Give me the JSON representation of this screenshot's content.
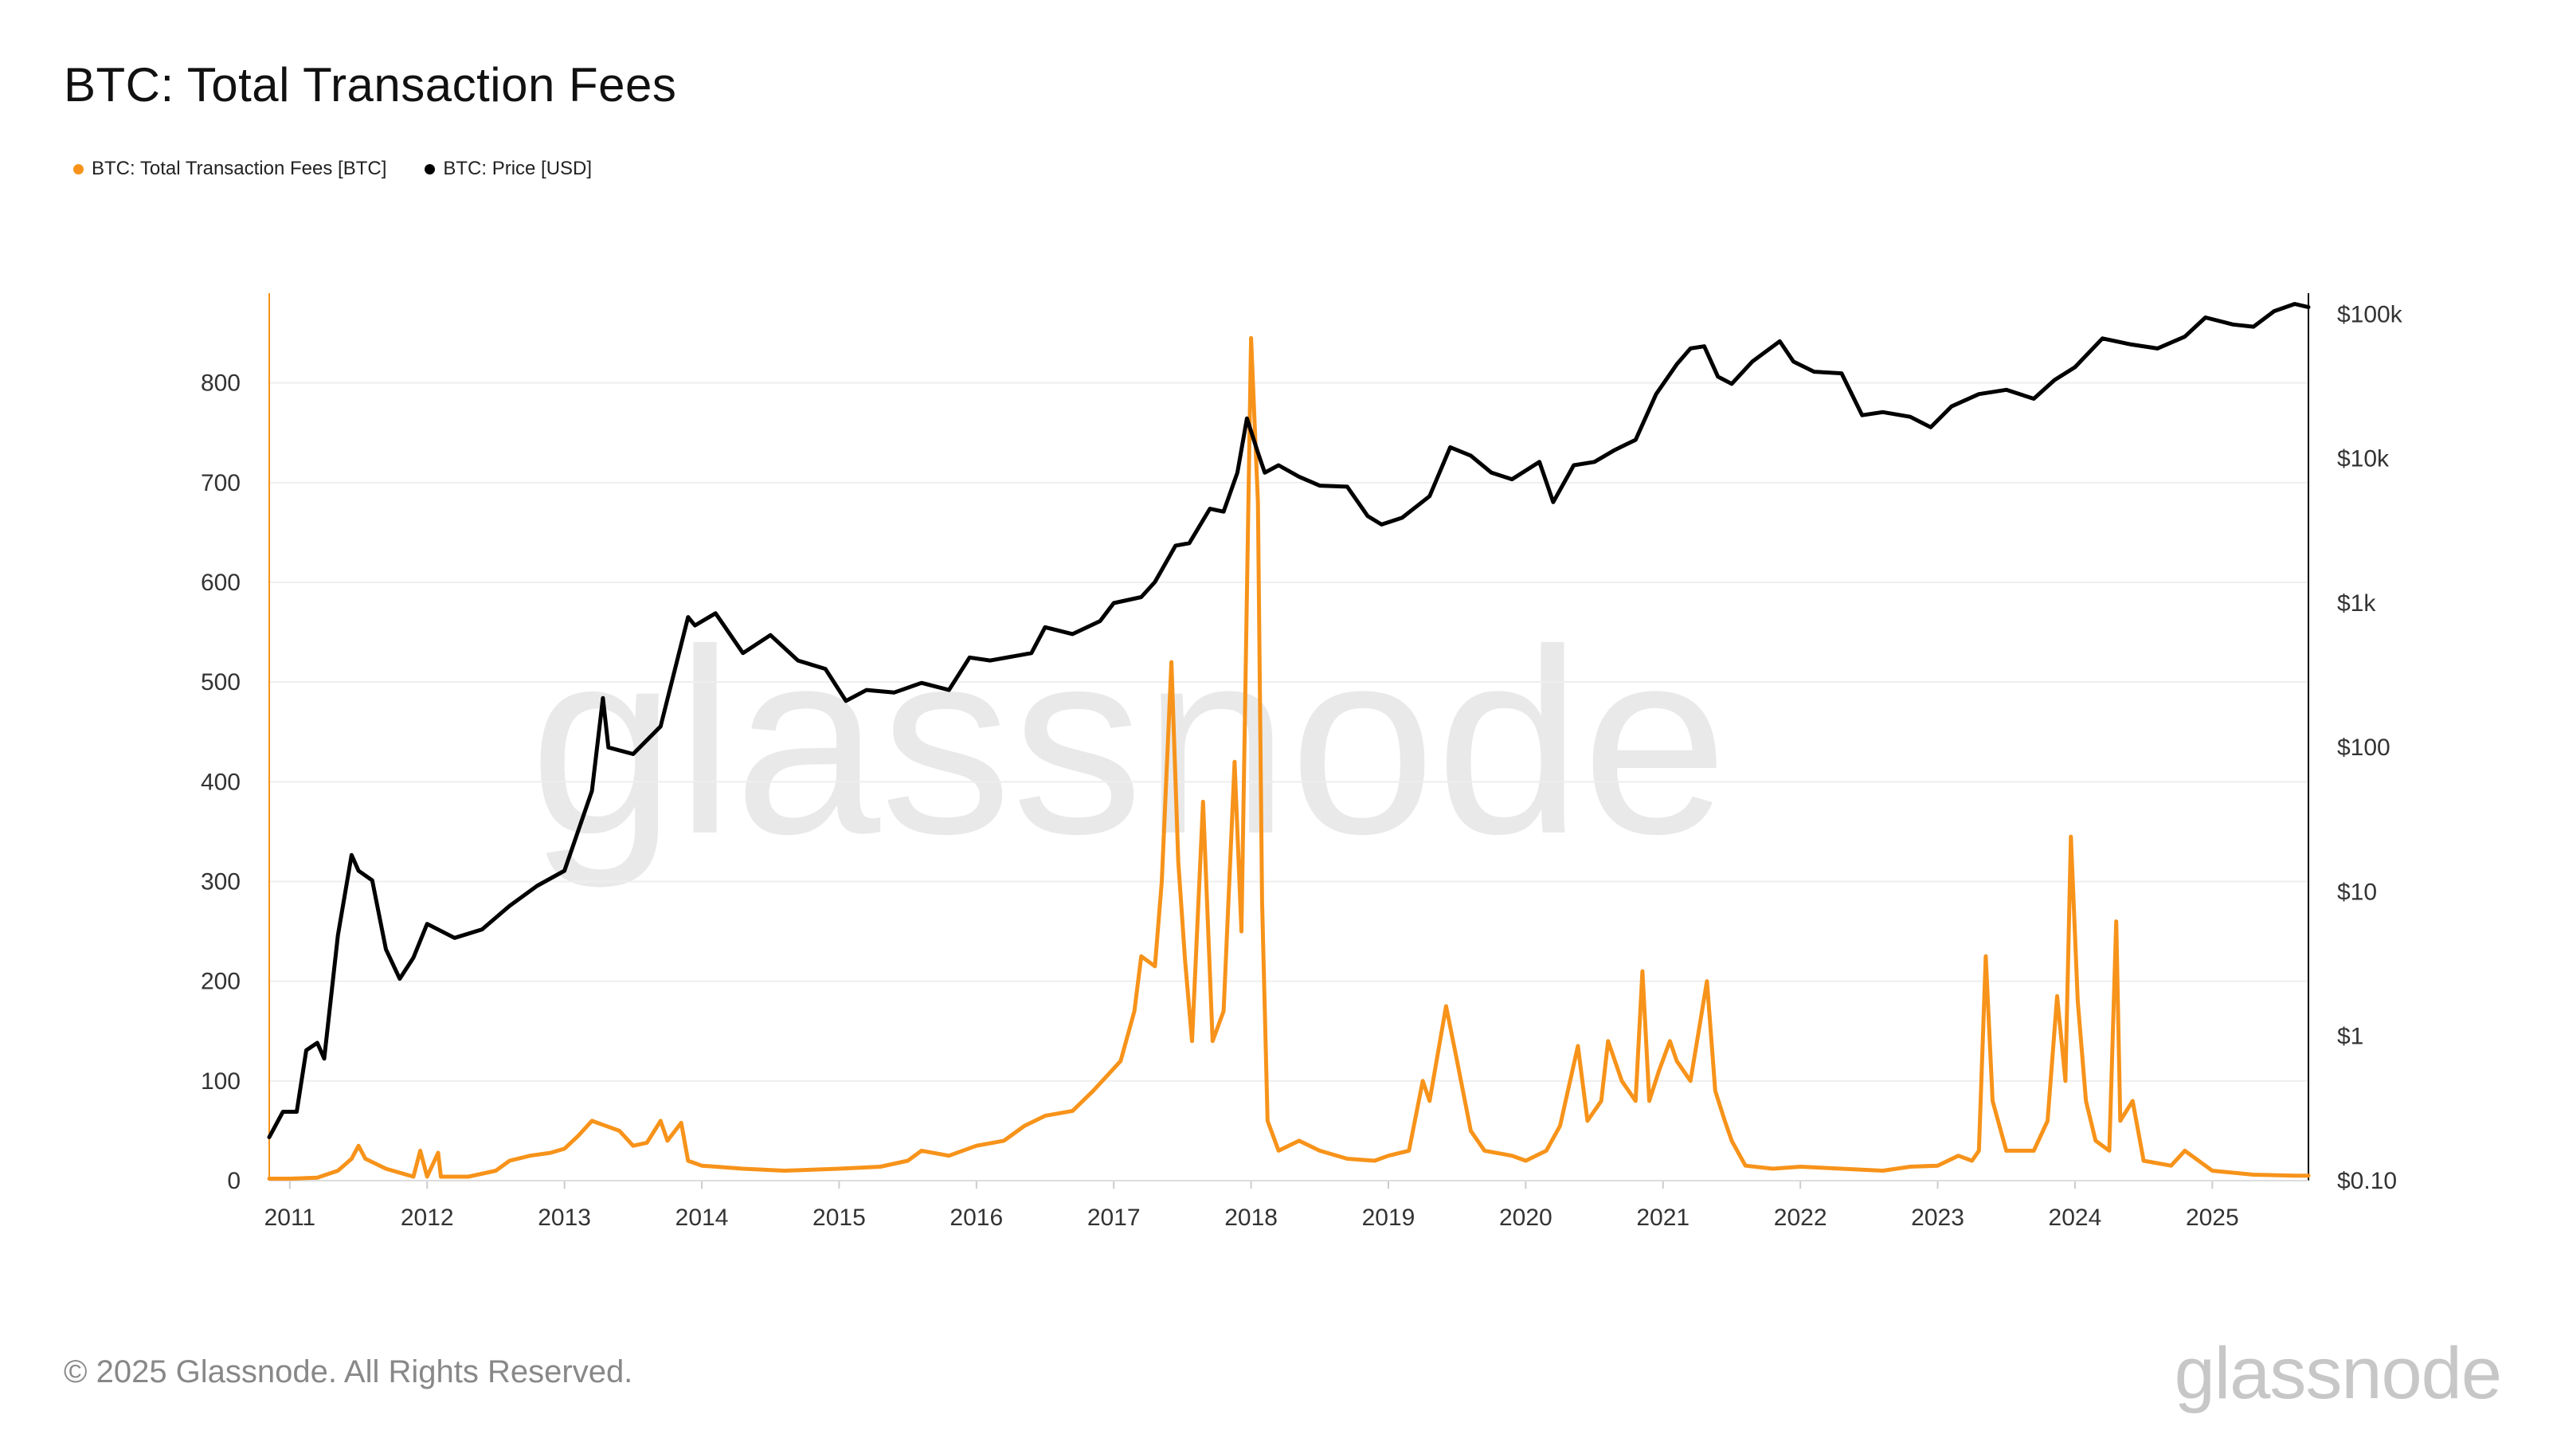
{
  "title": "BTC: Total Transaction Fees",
  "legend": [
    {
      "label": "BTC: Total Transaction Fees [BTC]",
      "color": "#f7931a"
    },
    {
      "label": "BTC: Price [USD]",
      "color": "#000000"
    }
  ],
  "footer": "© 2025 Glassnode. All Rights Reserved.",
  "brand": "glassnode",
  "watermark": "glassnode",
  "chart_data": {
    "type": "line",
    "title": "BTC: Total Transaction Fees",
    "grid": true,
    "legend_position": "top-left",
    "x_ticks": [
      "2011",
      "2012",
      "2013",
      "2014",
      "2015",
      "2016",
      "2017",
      "2018",
      "2019",
      "2020",
      "2021",
      "2022",
      "2023",
      "2024",
      "2025"
    ],
    "x_range": [
      2010.85,
      2025.7
    ],
    "y_left": {
      "label": "",
      "ticks": [
        0,
        100,
        200,
        300,
        400,
        500,
        600,
        700,
        800
      ],
      "range": [
        0,
        890
      ]
    },
    "y_right": {
      "label": "",
      "scale": "log",
      "ticks": [
        0.1,
        1,
        10,
        100,
        1000,
        10000,
        100000
      ],
      "tick_labels": [
        "$0.10",
        "$1",
        "$10",
        "$100",
        "$1k",
        "$10k",
        "$100k"
      ],
      "range": [
        0.1,
        140000
      ]
    },
    "series": [
      {
        "name": "BTC: Total Transaction Fees [BTC]",
        "axis": "left",
        "color": "#f7931a",
        "points": [
          [
            2010.85,
            2
          ],
          [
            2011.0,
            2
          ],
          [
            2011.2,
            3
          ],
          [
            2011.35,
            10
          ],
          [
            2011.45,
            22
          ],
          [
            2011.5,
            35
          ],
          [
            2011.55,
            22
          ],
          [
            2011.7,
            12
          ],
          [
            2011.9,
            4
          ],
          [
            2011.95,
            30
          ],
          [
            2012.0,
            4
          ],
          [
            2012.08,
            28
          ],
          [
            2012.1,
            4
          ],
          [
            2012.3,
            4
          ],
          [
            2012.5,
            10
          ],
          [
            2012.6,
            20
          ],
          [
            2012.75,
            25
          ],
          [
            2012.9,
            28
          ],
          [
            2013.0,
            32
          ],
          [
            2013.1,
            45
          ],
          [
            2013.2,
            60
          ],
          [
            2013.3,
            55
          ],
          [
            2013.4,
            50
          ],
          [
            2013.5,
            35
          ],
          [
            2013.6,
            38
          ],
          [
            2013.7,
            60
          ],
          [
            2013.75,
            40
          ],
          [
            2013.85,
            58
          ],
          [
            2013.9,
            20
          ],
          [
            2014.0,
            15
          ],
          [
            2014.3,
            12
          ],
          [
            2014.6,
            10
          ],
          [
            2015.0,
            12
          ],
          [
            2015.3,
            14
          ],
          [
            2015.5,
            20
          ],
          [
            2015.6,
            30
          ],
          [
            2015.8,
            25
          ],
          [
            2016.0,
            35
          ],
          [
            2016.2,
            40
          ],
          [
            2016.35,
            55
          ],
          [
            2016.5,
            65
          ],
          [
            2016.7,
            70
          ],
          [
            2016.85,
            90
          ],
          [
            2016.95,
            105
          ],
          [
            2017.05,
            120
          ],
          [
            2017.15,
            170
          ],
          [
            2017.2,
            225
          ],
          [
            2017.3,
            215
          ],
          [
            2017.35,
            300
          ],
          [
            2017.42,
            520
          ],
          [
            2017.47,
            320
          ],
          [
            2017.52,
            220
          ],
          [
            2017.57,
            140
          ],
          [
            2017.65,
            380
          ],
          [
            2017.72,
            140
          ],
          [
            2017.8,
            170
          ],
          [
            2017.88,
            420
          ],
          [
            2017.93,
            250
          ],
          [
            2018.0,
            845
          ],
          [
            2018.05,
            680
          ],
          [
            2018.08,
            280
          ],
          [
            2018.12,
            60
          ],
          [
            2018.2,
            30
          ],
          [
            2018.35,
            40
          ],
          [
            2018.5,
            30
          ],
          [
            2018.7,
            22
          ],
          [
            2018.9,
            20
          ],
          [
            2019.0,
            25
          ],
          [
            2019.15,
            30
          ],
          [
            2019.25,
            100
          ],
          [
            2019.3,
            80
          ],
          [
            2019.42,
            175
          ],
          [
            2019.5,
            120
          ],
          [
            2019.55,
            85
          ],
          [
            2019.6,
            50
          ],
          [
            2019.7,
            30
          ],
          [
            2019.9,
            25
          ],
          [
            2020.0,
            20
          ],
          [
            2020.15,
            30
          ],
          [
            2020.25,
            55
          ],
          [
            2020.38,
            135
          ],
          [
            2020.45,
            60
          ],
          [
            2020.55,
            80
          ],
          [
            2020.6,
            140
          ],
          [
            2020.7,
            100
          ],
          [
            2020.8,
            80
          ],
          [
            2020.85,
            210
          ],
          [
            2020.9,
            80
          ],
          [
            2020.97,
            110
          ],
          [
            2021.05,
            140
          ],
          [
            2021.1,
            120
          ],
          [
            2021.2,
            100
          ],
          [
            2021.32,
            200
          ],
          [
            2021.38,
            90
          ],
          [
            2021.45,
            60
          ],
          [
            2021.5,
            40
          ],
          [
            2021.6,
            15
          ],
          [
            2021.8,
            12
          ],
          [
            2022.0,
            14
          ],
          [
            2022.3,
            12
          ],
          [
            2022.6,
            10
          ],
          [
            2022.8,
            14
          ],
          [
            2023.0,
            15
          ],
          [
            2023.15,
            25
          ],
          [
            2023.25,
            20
          ],
          [
            2023.3,
            30
          ],
          [
            2023.35,
            225
          ],
          [
            2023.4,
            80
          ],
          [
            2023.5,
            30
          ],
          [
            2023.7,
            30
          ],
          [
            2023.8,
            60
          ],
          [
            2023.87,
            185
          ],
          [
            2023.93,
            100
          ],
          [
            2023.97,
            345
          ],
          [
            2024.02,
            180
          ],
          [
            2024.08,
            80
          ],
          [
            2024.15,
            40
          ],
          [
            2024.25,
            30
          ],
          [
            2024.3,
            260
          ],
          [
            2024.33,
            60
          ],
          [
            2024.42,
            80
          ],
          [
            2024.5,
            20
          ],
          [
            2024.7,
            15
          ],
          [
            2024.8,
            30
          ],
          [
            2025.0,
            10
          ],
          [
            2025.3,
            6
          ],
          [
            2025.6,
            5
          ],
          [
            2025.7,
            5
          ]
        ]
      },
      {
        "name": "BTC: Price [USD]",
        "axis": "right",
        "color": "#000000",
        "points": [
          [
            2010.85,
            0.2
          ],
          [
            2010.95,
            0.3
          ],
          [
            2011.05,
            0.3
          ],
          [
            2011.12,
            0.8
          ],
          [
            2011.2,
            0.9
          ],
          [
            2011.25,
            0.7
          ],
          [
            2011.35,
            5
          ],
          [
            2011.45,
            18
          ],
          [
            2011.5,
            14
          ],
          [
            2011.6,
            12
          ],
          [
            2011.7,
            4
          ],
          [
            2011.8,
            2.5
          ],
          [
            2011.9,
            3.5
          ],
          [
            2012.0,
            6
          ],
          [
            2012.2,
            4.8
          ],
          [
            2012.4,
            5.5
          ],
          [
            2012.6,
            8
          ],
          [
            2012.8,
            11
          ],
          [
            2013.0,
            14
          ],
          [
            2013.2,
            50
          ],
          [
            2013.28,
            220
          ],
          [
            2013.32,
            100
          ],
          [
            2013.5,
            90
          ],
          [
            2013.7,
            140
          ],
          [
            2013.9,
            800
          ],
          [
            2013.95,
            700
          ],
          [
            2014.1,
            850
          ],
          [
            2014.3,
            450
          ],
          [
            2014.5,
            600
          ],
          [
            2014.7,
            400
          ],
          [
            2014.9,
            350
          ],
          [
            2015.05,
            210
          ],
          [
            2015.2,
            250
          ],
          [
            2015.4,
            240
          ],
          [
            2015.6,
            280
          ],
          [
            2015.8,
            250
          ],
          [
            2015.95,
            420
          ],
          [
            2016.1,
            400
          ],
          [
            2016.4,
            450
          ],
          [
            2016.5,
            680
          ],
          [
            2016.7,
            610
          ],
          [
            2016.9,
            750
          ],
          [
            2017.0,
            1000
          ],
          [
            2017.2,
            1100
          ],
          [
            2017.3,
            1400
          ],
          [
            2017.45,
            2500
          ],
          [
            2017.55,
            2600
          ],
          [
            2017.7,
            4500
          ],
          [
            2017.8,
            4300
          ],
          [
            2017.9,
            8000
          ],
          [
            2017.97,
            19000
          ],
          [
            2018.05,
            11000
          ],
          [
            2018.1,
            8000
          ],
          [
            2018.2,
            9000
          ],
          [
            2018.35,
            7500
          ],
          [
            2018.5,
            6500
          ],
          [
            2018.7,
            6400
          ],
          [
            2018.85,
            4000
          ],
          [
            2018.95,
            3500
          ],
          [
            2019.1,
            3900
          ],
          [
            2019.3,
            5500
          ],
          [
            2019.45,
            12000
          ],
          [
            2019.6,
            10500
          ],
          [
            2019.75,
            8000
          ],
          [
            2019.9,
            7200
          ],
          [
            2020.1,
            9500
          ],
          [
            2020.2,
            5000
          ],
          [
            2020.35,
            9000
          ],
          [
            2020.5,
            9500
          ],
          [
            2020.65,
            11500
          ],
          [
            2020.8,
            13500
          ],
          [
            2020.95,
            28000
          ],
          [
            2021.1,
            45000
          ],
          [
            2021.2,
            58000
          ],
          [
            2021.3,
            60000
          ],
          [
            2021.4,
            37000
          ],
          [
            2021.5,
            33000
          ],
          [
            2021.65,
            47000
          ],
          [
            2021.85,
            65000
          ],
          [
            2021.95,
            47000
          ],
          [
            2022.1,
            40000
          ],
          [
            2022.3,
            39000
          ],
          [
            2022.45,
            20000
          ],
          [
            2022.6,
            21000
          ],
          [
            2022.8,
            19500
          ],
          [
            2022.95,
            16500
          ],
          [
            2023.1,
            23000
          ],
          [
            2023.3,
            28000
          ],
          [
            2023.5,
            30000
          ],
          [
            2023.7,
            26000
          ],
          [
            2023.85,
            35000
          ],
          [
            2024.0,
            43000
          ],
          [
            2024.2,
            68000
          ],
          [
            2024.4,
            62000
          ],
          [
            2024.6,
            58000
          ],
          [
            2024.8,
            70000
          ],
          [
            2024.95,
            95000
          ],
          [
            2025.15,
            85000
          ],
          [
            2025.3,
            82000
          ],
          [
            2025.45,
            105000
          ],
          [
            2025.6,
            118000
          ],
          [
            2025.7,
            112000
          ]
        ]
      }
    ]
  }
}
